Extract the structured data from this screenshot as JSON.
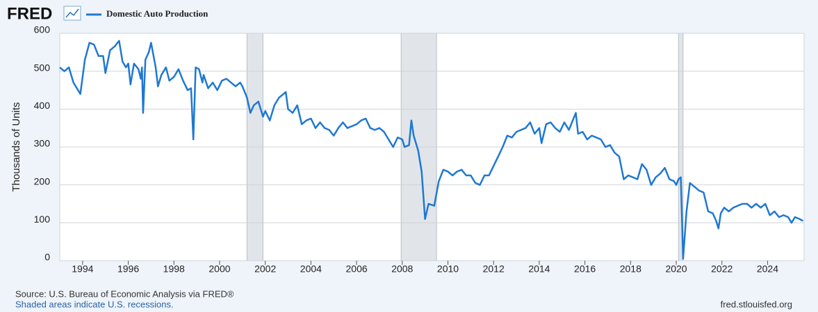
{
  "logo": "FRED",
  "chart_data": {
    "type": "line",
    "ylabel": "Thousands of Units",
    "xlim": [
      1993,
      2025.6
    ],
    "ylim": [
      0,
      600
    ],
    "yticks": [
      0,
      100,
      200,
      300,
      400,
      500,
      600
    ],
    "xticks": [
      1994,
      1996,
      1998,
      2000,
      2002,
      2004,
      2006,
      2008,
      2010,
      2012,
      2014,
      2016,
      2018,
      2020,
      2022,
      2024
    ],
    "grid": true,
    "recessions": [
      [
        2001.2,
        2001.9
      ],
      [
        2007.95,
        2009.5
      ],
      [
        2020.1,
        2020.3
      ]
    ],
    "series": [
      {
        "name": "Domestic Auto Production",
        "color": "#1f78d1",
        "x": [
          1993.0,
          1993.2,
          1993.4,
          1993.6,
          1993.9,
          1994.1,
          1994.3,
          1994.5,
          1994.7,
          1994.9,
          1995.0,
          1995.2,
          1995.4,
          1995.6,
          1995.75,
          1995.9,
          1996.0,
          1996.1,
          1996.25,
          1996.45,
          1996.55,
          1996.6,
          1996.65,
          1996.75,
          1996.9,
          1997.0,
          1997.2,
          1997.3,
          1997.45,
          1997.65,
          1997.8,
          1998.0,
          1998.2,
          1998.4,
          1998.6,
          1998.75,
          1998.85,
          1998.95,
          1999.1,
          1999.25,
          1999.3,
          1999.5,
          1999.7,
          1999.9,
          2000.1,
          2000.3,
          2000.5,
          2000.7,
          2000.9,
          2001.0,
          2001.2,
          2001.35,
          2001.5,
          2001.7,
          2001.9,
          2002.0,
          2002.2,
          2002.4,
          2002.6,
          2002.8,
          2002.9,
          2003.0,
          2003.2,
          2003.4,
          2003.6,
          2003.8,
          2004.0,
          2004.2,
          2004.4,
          2004.6,
          2004.8,
          2005.0,
          2005.2,
          2005.4,
          2005.6,
          2005.8,
          2006.0,
          2006.2,
          2006.4,
          2006.6,
          2006.8,
          2007.0,
          2007.2,
          2007.4,
          2007.6,
          2007.8,
          2008.0,
          2008.1,
          2008.3,
          2008.4,
          2008.5,
          2008.7,
          2008.85,
          2009.0,
          2009.15,
          2009.4,
          2009.6,
          2009.8,
          2010.0,
          2010.2,
          2010.4,
          2010.6,
          2010.8,
          2011.0,
          2011.2,
          2011.4,
          2011.6,
          2011.8,
          2012.0,
          2012.2,
          2012.4,
          2012.6,
          2012.8,
          2013.0,
          2013.2,
          2013.4,
          2013.6,
          2013.8,
          2014.0,
          2014.1,
          2014.3,
          2014.5,
          2014.7,
          2014.9,
          2015.1,
          2015.3,
          2015.5,
          2015.6,
          2015.7,
          2015.9,
          2016.1,
          2016.3,
          2016.5,
          2016.7,
          2016.9,
          2017.1,
          2017.3,
          2017.5,
          2017.7,
          2017.9,
          2018.1,
          2018.3,
          2018.5,
          2018.7,
          2018.9,
          2019.1,
          2019.3,
          2019.5,
          2019.7,
          2019.9,
          2020.0,
          2020.1,
          2020.2,
          2020.3,
          2020.45,
          2020.6,
          2020.8,
          2021.0,
          2021.2,
          2021.4,
          2021.6,
          2021.75,
          2021.85,
          2021.95,
          2022.1,
          2022.3,
          2022.5,
          2022.7,
          2022.9,
          2023.1,
          2023.3,
          2023.5,
          2023.7,
          2023.9,
          2024.1,
          2024.3,
          2024.5,
          2024.7,
          2024.9,
          2025.05,
          2025.2,
          2025.4,
          2025.55
        ],
        "values": [
          510,
          500,
          510,
          470,
          440,
          530,
          575,
          570,
          540,
          540,
          495,
          555,
          565,
          580,
          525,
          510,
          520,
          465,
          520,
          505,
          480,
          510,
          390,
          530,
          550,
          575,
          510,
          460,
          490,
          510,
          475,
          485,
          505,
          475,
          450,
          455,
          320,
          510,
          505,
          470,
          490,
          455,
          470,
          450,
          475,
          480,
          470,
          460,
          470,
          460,
          430,
          390,
          410,
          420,
          380,
          395,
          370,
          410,
          430,
          440,
          445,
          400,
          390,
          410,
          360,
          370,
          375,
          350,
          365,
          350,
          345,
          330,
          350,
          365,
          350,
          355,
          360,
          370,
          375,
          350,
          345,
          350,
          340,
          320,
          300,
          325,
          320,
          300,
          305,
          370,
          330,
          290,
          235,
          110,
          150,
          145,
          210,
          240,
          235,
          225,
          235,
          240,
          225,
          225,
          205,
          200,
          225,
          225,
          250,
          275,
          300,
          330,
          325,
          340,
          345,
          350,
          365,
          335,
          350,
          310,
          360,
          365,
          350,
          340,
          365,
          345,
          375,
          390,
          335,
          340,
          320,
          330,
          325,
          320,
          300,
          305,
          285,
          275,
          215,
          225,
          220,
          215,
          255,
          240,
          200,
          220,
          230,
          245,
          215,
          210,
          200,
          215,
          220,
          5,
          130,
          205,
          195,
          185,
          180,
          130,
          125,
          105,
          85,
          125,
          140,
          130,
          140,
          145,
          150,
          150,
          140,
          150,
          140,
          150,
          120,
          130,
          115,
          120,
          115,
          100,
          115,
          110,
          105
        ]
      }
    ]
  },
  "footer": {
    "source": "Source: U.S. Bureau of Economic Analysis via FRED®",
    "note": "Shaded areas indicate U.S. recessions.",
    "site": "fred.stlouisfed.org"
  }
}
